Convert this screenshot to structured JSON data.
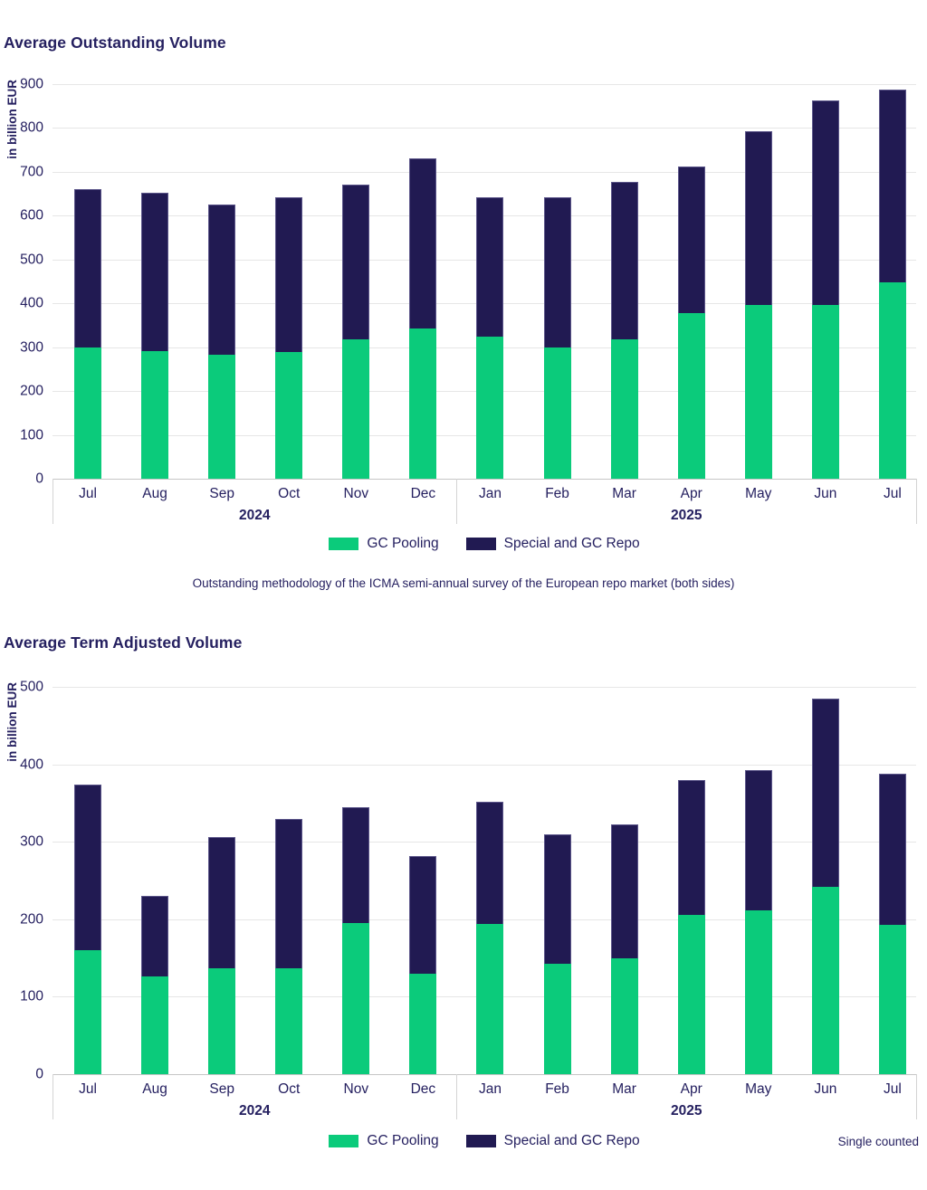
{
  "colors": {
    "gc_pooling": "#0bcb7b",
    "special_repo": "#211a52",
    "text": "#252060",
    "gridline": "#e6e6e6",
    "axis_line": "#c6c6c6"
  },
  "legend": {
    "gc_pooling_label": "GC Pooling",
    "special_label": "Special and GC Repo"
  },
  "footnotes": {
    "outstanding_caption": "Outstanding methodology of the ICMA semi-annual survey of the European repo market (both sides)",
    "single_counted": "Single counted"
  },
  "chart_data": [
    {
      "type": "bar",
      "stacked": true,
      "title": "Average Outstanding Volume",
      "ylabel": "in billion EUR",
      "ylim": [
        0,
        900
      ],
      "ytick_step": 100,
      "grid": true,
      "legend_position": "bottom-center",
      "categories": [
        "Jul",
        "Aug",
        "Sep",
        "Oct",
        "Nov",
        "Dec",
        "Jan",
        "Feb",
        "Mar",
        "Apr",
        "May",
        "Jun",
        "Jul"
      ],
      "year_groups": [
        {
          "label": "2024",
          "from": 0,
          "to": 5
        },
        {
          "label": "2025",
          "from": 6,
          "to": 12
        }
      ],
      "series": [
        {
          "name": "GC Pooling",
          "color_key": "gc_pooling",
          "values": [
            300,
            292,
            282,
            290,
            318,
            343,
            325,
            300,
            318,
            378,
            396,
            396,
            448
          ]
        },
        {
          "name": "Special and GC Repo",
          "color_key": "special_repo",
          "values": [
            360,
            360,
            344,
            353,
            352,
            388,
            318,
            343,
            360,
            335,
            397,
            466,
            440
          ]
        }
      ],
      "totals": [
        660,
        652,
        626,
        643,
        670,
        731,
        643,
        643,
        678,
        713,
        793,
        862,
        888
      ]
    },
    {
      "type": "bar",
      "stacked": true,
      "title": "Average Term Adjusted Volume",
      "ylabel": "in billion EUR",
      "ylim": [
        0,
        500
      ],
      "ytick_step": 100,
      "grid": true,
      "legend_position": "bottom-center",
      "categories": [
        "Jul",
        "Aug",
        "Sep",
        "Oct",
        "Nov",
        "Dec",
        "Jan",
        "Feb",
        "Mar",
        "Apr",
        "May",
        "Jun",
        "Jul"
      ],
      "year_groups": [
        {
          "label": "2024",
          "from": 0,
          "to": 5
        },
        {
          "label": "2025",
          "from": 6,
          "to": 12
        }
      ],
      "series": [
        {
          "name": "GC Pooling",
          "color_key": "gc_pooling",
          "values": [
            160,
            126,
            137,
            137,
            195,
            130,
            194,
            143,
            149,
            206,
            212,
            242,
            193
          ]
        },
        {
          "name": "Special and GC Repo",
          "color_key": "special_repo",
          "values": [
            214,
            104,
            169,
            192,
            150,
            151,
            158,
            167,
            173,
            174,
            180,
            243,
            195
          ]
        }
      ],
      "totals": [
        374,
        230,
        306,
        329,
        345,
        281,
        352,
        310,
        322,
        380,
        392,
        485,
        388
      ]
    }
  ]
}
